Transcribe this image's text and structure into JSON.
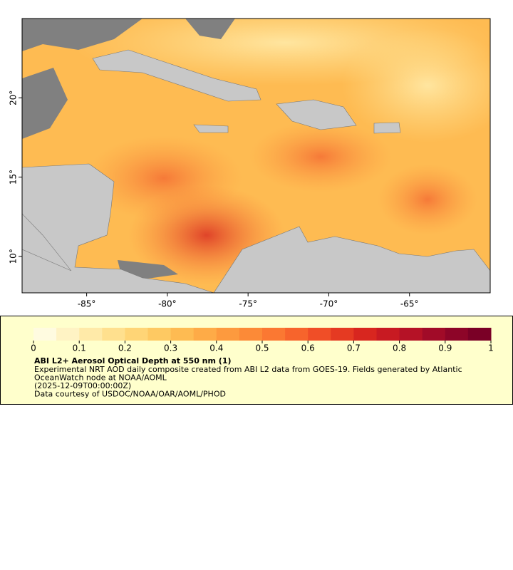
{
  "map": {
    "xlim": [
      -89,
      -60
    ],
    "ylim": [
      7.7,
      25
    ],
    "xticks": [
      {
        "value": -85,
        "label": "-85°"
      },
      {
        "value": -80,
        "label": "-80°"
      },
      {
        "value": -75,
        "label": "-75°"
      },
      {
        "value": -70,
        "label": "-70°"
      },
      {
        "value": -65,
        "label": "-65°"
      }
    ],
    "yticks": [
      {
        "value": 10,
        "label": "10°"
      },
      {
        "value": 15,
        "label": "15°"
      },
      {
        "value": 20,
        "label": "20°"
      }
    ]
  },
  "colorbar": {
    "lim": [
      0,
      1
    ],
    "ticks": [
      0,
      0.1,
      0.2,
      0.3,
      0.4,
      0.5,
      0.6,
      0.7,
      0.8,
      0.9,
      1
    ],
    "colors": [
      "#fffbe0",
      "#fff3c4",
      "#ffeaa8",
      "#ffe08e",
      "#ffd576",
      "#fec962",
      "#febb52",
      "#feab47",
      "#fd9a3e",
      "#fc8a37",
      "#fb7832",
      "#f7642c",
      "#f04e27",
      "#e53a22",
      "#d8261f",
      "#c81a22",
      "#b51226",
      "#a10b28",
      "#8d0528",
      "#7a0026"
    ]
  },
  "legend": {
    "title": "ABI L2+ Aerosol Optical Depth at 550 nm (1)",
    "lines": [
      "Experimental NRT AOD daily composite created from ABI L2 data from GOES-19. Fields generated by Atlantic",
      "OceanWatch node at NOAA/AOML",
      "(2025-12-09T00:00:00Z)",
      "Data courtesy of USDOC/NOAA/OAR/AOML/PHOD"
    ]
  }
}
